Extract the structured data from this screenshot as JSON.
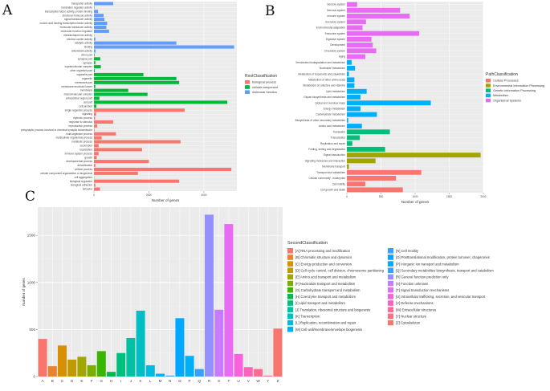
{
  "panel_labels": [
    "A",
    "B",
    "C"
  ],
  "chart_data": [
    {
      "type": "bar",
      "orientation": "horizontal",
      "panel": "A",
      "xlabel": "Number of genes",
      "ylabel": "",
      "xlim": [
        0,
        5200
      ],
      "xticks": [
        0,
        2000,
        4000
      ],
      "legend_title": "RootClassification",
      "legend_position": "right",
      "groups": [
        {
          "name": "biological process",
          "color": "#F8766D"
        },
        {
          "name": "cellular component",
          "color": "#00BA38"
        },
        {
          "name": "molecular function",
          "color": "#619CFF"
        }
      ],
      "categories": [
        {
          "label": "transporter activity",
          "value": 700,
          "group": 2
        },
        {
          "label": "translation regulator activity",
          "value": 20,
          "group": 2
        },
        {
          "label": "transcription factor activity, protein binding",
          "value": 150,
          "group": 2
        },
        {
          "label": "structural molecule activity",
          "value": 350,
          "group": 2
        },
        {
          "label": "signal transducer activity",
          "value": 380,
          "group": 2
        },
        {
          "label": "nucleic acid binding transcription factor activity",
          "value": 480,
          "group": 2
        },
        {
          "label": "molecular transducer activity",
          "value": 450,
          "group": 2
        },
        {
          "label": "molecular function regulator",
          "value": 550,
          "group": 2
        },
        {
          "label": "metallochaperone activity",
          "value": 10,
          "group": 2
        },
        {
          "label": "electron carrier activity",
          "value": 50,
          "group": 2
        },
        {
          "label": "catalytic activity",
          "value": 3000,
          "group": 2
        },
        {
          "label": "binding",
          "value": 5100,
          "group": 2
        },
        {
          "label": "antioxidant activity",
          "value": 60,
          "group": 2
        },
        {
          "label": "virion part",
          "value": 20,
          "group": 1
        },
        {
          "label": "synapse part",
          "value": 230,
          "group": 1
        },
        {
          "label": "synapse",
          "value": 50,
          "group": 1
        },
        {
          "label": "supramolecular complex",
          "value": 250,
          "group": 1
        },
        {
          "label": "other organism part",
          "value": 30,
          "group": 1
        },
        {
          "label": "organelle part",
          "value": 1800,
          "group": 1
        },
        {
          "label": "organelle",
          "value": 3000,
          "group": 1
        },
        {
          "label": "membrane part",
          "value": 3100,
          "group": 1
        },
        {
          "label": "membrane-enclosed lumen",
          "value": 50,
          "group": 1
        },
        {
          "label": "membrane",
          "value": 1250,
          "group": 1
        },
        {
          "label": "macromolecular complex",
          "value": 1950,
          "group": 1
        },
        {
          "label": "extracellular region part",
          "value": 200,
          "group": 1
        },
        {
          "label": "cell part",
          "value": 4850,
          "group": 1
        },
        {
          "label": "cell junction",
          "value": 90,
          "group": 1
        },
        {
          "label": "single organism process",
          "value": 3300,
          "group": 0
        },
        {
          "label": "signaling",
          "value": 80,
          "group": 0
        },
        {
          "label": "rhythmic process",
          "value": 40,
          "group": 0
        },
        {
          "label": "response to stimulus",
          "value": 700,
          "group": 0
        },
        {
          "label": "reproductive process",
          "value": 120,
          "group": 0
        },
        {
          "label": "presynaptic process involved in chemical synaptic transmission",
          "value": 20,
          "group": 0
        },
        {
          "label": "multi-organism process",
          "value": 800,
          "group": 0
        },
        {
          "label": "multicellular organismal process",
          "value": 280,
          "group": 0
        },
        {
          "label": "metabolic process",
          "value": 3150,
          "group": 0
        },
        {
          "label": "locomotion",
          "value": 170,
          "group": 0
        },
        {
          "label": "localization",
          "value": 1750,
          "group": 0
        },
        {
          "label": "immune system process",
          "value": 170,
          "group": 0
        },
        {
          "label": "growth",
          "value": 100,
          "group": 0
        },
        {
          "label": "developmental process",
          "value": 2000,
          "group": 0
        },
        {
          "label": "detoxification",
          "value": 50,
          "group": 0
        },
        {
          "label": "cellular process",
          "value": 5000,
          "group": 0
        },
        {
          "label": "cellular component organization or biogenesis",
          "value": 1600,
          "group": 0
        },
        {
          "label": "cell aggregation",
          "value": 10,
          "group": 0
        },
        {
          "label": "biological regulation",
          "value": 3100,
          "group": 0
        },
        {
          "label": "biological adhesion",
          "value": 50,
          "group": 0
        },
        {
          "label": "behavior",
          "value": 220,
          "group": 0
        }
      ]
    },
    {
      "type": "bar",
      "orientation": "horizontal",
      "panel": "B",
      "xlabel": "Number of genes",
      "ylabel": "",
      "xlim": [
        0,
        2000
      ],
      "xticks": [
        0,
        500,
        1000,
        1500,
        2000
      ],
      "legend_title": "PathClassification",
      "legend_position": "right",
      "groups": [
        {
          "name": "Cellular Processes",
          "color": "#F8766D"
        },
        {
          "name": "Environmental Information Processing",
          "color": "#A3A500"
        },
        {
          "name": "Genetic Information Processing",
          "color": "#00BF7D"
        },
        {
          "name": "Metabolism",
          "color": "#00B0F6"
        },
        {
          "name": "Organismal Systems",
          "color": "#E76BF3"
        }
      ],
      "categories": [
        {
          "label": "Sensory system",
          "value": 150,
          "group": 4
        },
        {
          "label": "Nervous system",
          "value": 780,
          "group": 4
        },
        {
          "label": "Immune system",
          "value": 920,
          "group": 4
        },
        {
          "label": "Excretory system",
          "value": 280,
          "group": 4
        },
        {
          "label": "Environmental adaptation",
          "value": 230,
          "group": 4
        },
        {
          "label": "Endocrine system",
          "value": 1060,
          "group": 4
        },
        {
          "label": "Digestive system",
          "value": 360,
          "group": 4
        },
        {
          "label": "Development",
          "value": 380,
          "group": 4
        },
        {
          "label": "Circulatory system",
          "value": 430,
          "group": 4
        },
        {
          "label": "Aging",
          "value": 270,
          "group": 4
        },
        {
          "label": "Xenobiotics biodegradation and metabolism",
          "value": 70,
          "group": 3
        },
        {
          "label": "Nucleotide metabolism",
          "value": 120,
          "group": 3
        },
        {
          "label": "Metabolism of terpenoids and polyketides",
          "value": 30,
          "group": 3
        },
        {
          "label": "Metabolism of other amino acids",
          "value": 110,
          "group": 3
        },
        {
          "label": "Metabolism of cofactors and vitamins",
          "value": 110,
          "group": 3
        },
        {
          "label": "Lipid metabolism",
          "value": 290,
          "group": 3
        },
        {
          "label": "Glycan biosynthesis and metabolism",
          "value": 200,
          "group": 3
        },
        {
          "label": "Global and overview maps",
          "value": 1230,
          "group": 3
        },
        {
          "label": "Energy metabolism",
          "value": 200,
          "group": 3
        },
        {
          "label": "Carbohydrate metabolism",
          "value": 440,
          "group": 3
        },
        {
          "label": "Biosynthesis of other secondary metabolites",
          "value": 20,
          "group": 3
        },
        {
          "label": "Amino acid metabolism",
          "value": 220,
          "group": 3
        },
        {
          "label": "Translation",
          "value": 630,
          "group": 2
        },
        {
          "label": "Transcription",
          "value": 190,
          "group": 2
        },
        {
          "label": "Replication and repair",
          "value": 80,
          "group": 2
        },
        {
          "label": "Folding, sorting and degradation",
          "value": 560,
          "group": 2
        },
        {
          "label": "Signal transduction",
          "value": 1960,
          "group": 1
        },
        {
          "label": "Signaling molecules and interaction",
          "value": 420,
          "group": 1
        },
        {
          "label": "Membrane transport",
          "value": 30,
          "group": 1
        },
        {
          "label": "Transport and catabolism",
          "value": 1090,
          "group": 0
        },
        {
          "label": "Cellular community - eukaryotes",
          "value": 720,
          "group": 0
        },
        {
          "label": "Cell motility",
          "value": 270,
          "group": 0
        },
        {
          "label": "Cell growth and death",
          "value": 820,
          "group": 0
        }
      ]
    },
    {
      "type": "bar",
      "orientation": "vertical",
      "panel": "C",
      "xlabel": "",
      "ylabel": "Number of genes",
      "ylim": [
        0,
        1800
      ],
      "yticks": [
        0,
        500,
        1000,
        1500
      ],
      "legend_title": "SecondClassification",
      "legend_position": "right",
      "categories": [
        "A",
        "B",
        "C",
        "D",
        "E",
        "F",
        "G",
        "H",
        "I",
        "J",
        "K",
        "L",
        "M",
        "N",
        "O",
        "P",
        "Q",
        "R",
        "S",
        "T",
        "U",
        "V",
        "W",
        "Y",
        "Z"
      ],
      "values": [
        400,
        110,
        330,
        180,
        210,
        120,
        270,
        50,
        250,
        410,
        700,
        120,
        30,
        10,
        620,
        220,
        80,
        1720,
        710,
        1620,
        240,
        100,
        80,
        10,
        510
      ],
      "colors": [
        "#F8766D",
        "#EA8331",
        "#D89000",
        "#C09B00",
        "#A3A500",
        "#7CAE00",
        "#39B600",
        "#00BB4E",
        "#00BF7D",
        "#00C1A3",
        "#00BFC4",
        "#00BAE0",
        "#00B0F6",
        "#35A2FF",
        "#00A9FF",
        "#00B0F6",
        "#35A2FF",
        "#9590FF",
        "#C77CFF",
        "#E76BF3",
        "#FA62DB",
        "#FF62BC",
        "#FF6C91",
        "#FC717F",
        "#F8766D"
      ],
      "legend_items": [
        "[A] RNA processing and modification",
        "[B] Chromatin structure and dynamics",
        "[C] Energy production and conversion",
        "[D] Cell cycle control, cell division, chromosome partitioning",
        "[E] Amino acid transport and metabolism",
        "[F] Nucleotide transport and metabolism",
        "[G] Carbohydrate transport and metabolism",
        "[H] Coenzyme transport and metabolism",
        "[I] Lipid transport and metabolism",
        "[J] Translation, ribosomal structure and biogenesis",
        "[K] Transcription",
        "[L] Replication, recombination and repair",
        "[M] Cell wall/membrane/envelope biogenesis",
        "[N] Cell motility",
        "[O] Posttranslational modification, protein turnover, chaperones",
        "[P] Inorganic ion transport and metabolism",
        "[Q] Secondary metabolites biosynthesis, transport and catabolism",
        "[R] General function prediction only",
        "[S] Function unknown",
        "[T] Signal transduction mechanisms",
        "[U] Intracellular trafficking, secretion, and vesicular transport",
        "[V] Defense mechanisms",
        "[W] Extracellular structures",
        "[Y] Nuclear structure",
        "[Z] Cytoskeleton"
      ]
    }
  ]
}
